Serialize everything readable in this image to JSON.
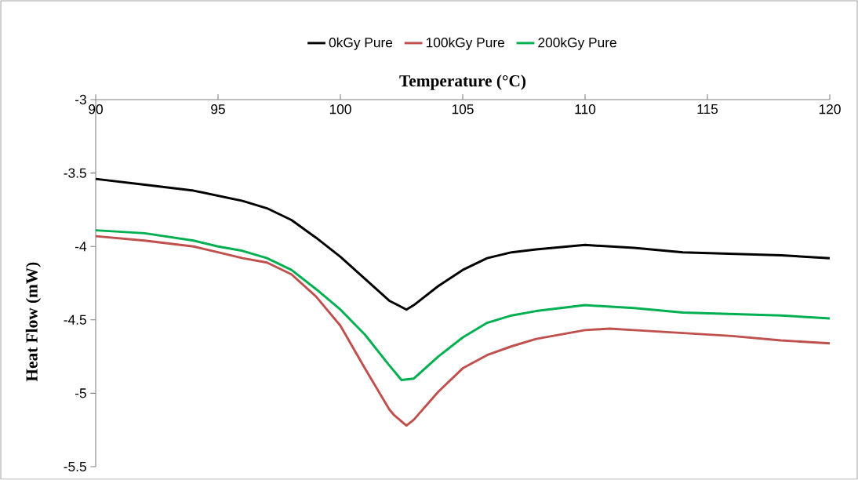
{
  "chart_data": {
    "type": "line",
    "xlabel": "Temperature (°C)",
    "ylabel": "Heat Flow (mW)",
    "xlim": [
      90,
      120
    ],
    "ylim": [
      -5.5,
      -3
    ],
    "xticks": [
      90,
      95,
      100,
      105,
      110,
      115,
      120
    ],
    "yticks": [
      -5.5,
      -5,
      -4.5,
      -4,
      -3.5,
      -3
    ],
    "legend": "top",
    "series": [
      {
        "name": "0kGy Pure",
        "color": "#000000",
        "x": [
          90,
          92,
          94,
          96,
          97,
          98,
          99,
          100,
          101,
          102,
          102.7,
          103,
          104,
          105,
          106,
          107,
          108,
          110,
          111,
          112,
          114,
          116,
          118,
          120
        ],
        "values": [
          -3.54,
          -3.58,
          -3.62,
          -3.69,
          -3.74,
          -3.82,
          -3.94,
          -4.07,
          -4.22,
          -4.37,
          -4.43,
          -4.4,
          -4.27,
          -4.16,
          -4.08,
          -4.04,
          -4.02,
          -3.99,
          -4.0,
          -4.01,
          -4.04,
          -4.05,
          -4.06,
          -4.08
        ]
      },
      {
        "name": "100kGy Pure",
        "color": "#c0504d",
        "x": [
          90,
          92,
          93,
          94,
          95,
          96,
          97,
          98,
          99,
          100,
          101,
          102,
          102.2,
          102.7,
          103,
          104,
          105,
          106,
          107,
          108,
          110,
          111,
          112,
          114,
          116,
          118,
          120
        ],
        "values": [
          -3.93,
          -3.96,
          -3.98,
          -4.0,
          -4.04,
          -4.08,
          -4.11,
          -4.19,
          -4.34,
          -4.54,
          -4.83,
          -5.11,
          -5.15,
          -5.22,
          -5.18,
          -4.99,
          -4.83,
          -4.74,
          -4.68,
          -4.63,
          -4.57,
          -4.56,
          -4.57,
          -4.59,
          -4.61,
          -4.64,
          -4.66
        ]
      },
      {
        "name": "200kGy Pure",
        "color": "#00b050",
        "x": [
          90,
          92,
          94,
          95,
          96,
          97,
          98,
          99,
          100,
          101,
          102,
          102.5,
          103,
          104,
          105,
          106,
          107,
          108,
          110,
          111,
          112,
          114,
          116,
          118,
          120
        ],
        "values": [
          -3.89,
          -3.91,
          -3.96,
          -4.0,
          -4.03,
          -4.08,
          -4.16,
          -4.29,
          -4.43,
          -4.6,
          -4.81,
          -4.91,
          -4.9,
          -4.75,
          -4.62,
          -4.52,
          -4.47,
          -4.44,
          -4.4,
          -4.41,
          -4.42,
          -4.45,
          -4.46,
          -4.47,
          -4.49
        ]
      }
    ]
  }
}
